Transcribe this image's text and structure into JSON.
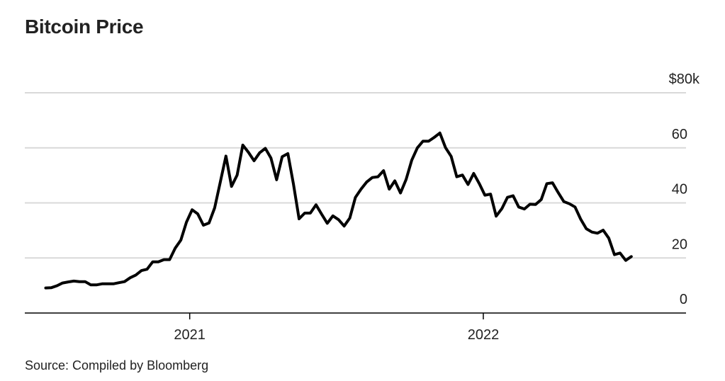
{
  "title": "Bitcoin Price",
  "source": "Source: Compiled by Bloomberg",
  "chart_data": {
    "type": "line",
    "title": "Bitcoin Price",
    "xlabel": "",
    "ylabel": "",
    "ylim": [
      0,
      80
    ],
    "y_ticks": [
      0,
      20,
      40,
      60,
      80
    ],
    "y_tick_labels": [
      "0",
      "20",
      "40",
      "60",
      "$80k"
    ],
    "x_ticks": [
      {
        "label": "2021",
        "x": "2021-01-01"
      },
      {
        "label": "2022",
        "x": "2022-01-01"
      }
    ],
    "x_range": [
      "2020-06-10",
      "2022-09-10"
    ],
    "grid": true,
    "series": [
      {
        "color": "#000000",
        "x": [
          "2020-07-06",
          "2020-07-13",
          "2020-07-20",
          "2020-07-27",
          "2020-08-03",
          "2020-08-10",
          "2020-08-17",
          "2020-08-24",
          "2020-08-31",
          "2020-09-07",
          "2020-09-14",
          "2020-09-21",
          "2020-09-28",
          "2020-10-05",
          "2020-10-12",
          "2020-10-19",
          "2020-10-26",
          "2020-11-02",
          "2020-11-09",
          "2020-11-16",
          "2020-11-23",
          "2020-11-30",
          "2020-12-07",
          "2020-12-14",
          "2020-12-21",
          "2020-12-28",
          "2021-01-04",
          "2021-01-11",
          "2021-01-18",
          "2021-01-25",
          "2021-02-01",
          "2021-02-08",
          "2021-02-15",
          "2021-02-22",
          "2021-03-01",
          "2021-03-08",
          "2021-03-15",
          "2021-03-22",
          "2021-03-29",
          "2021-04-05",
          "2021-04-12",
          "2021-04-19",
          "2021-04-26",
          "2021-05-03",
          "2021-05-10",
          "2021-05-17",
          "2021-05-24",
          "2021-05-31",
          "2021-06-07",
          "2021-06-14",
          "2021-06-21",
          "2021-06-28",
          "2021-07-05",
          "2021-07-12",
          "2021-07-19",
          "2021-07-26",
          "2021-08-02",
          "2021-08-09",
          "2021-08-16",
          "2021-08-23",
          "2021-08-30",
          "2021-09-06",
          "2021-09-13",
          "2021-09-20",
          "2021-09-27",
          "2021-10-04",
          "2021-10-11",
          "2021-10-18",
          "2021-10-25",
          "2021-11-01",
          "2021-11-08",
          "2021-11-15",
          "2021-11-22",
          "2021-11-29",
          "2021-12-06",
          "2021-12-13",
          "2021-12-20",
          "2021-12-27",
          "2022-01-03",
          "2022-01-10",
          "2022-01-17",
          "2022-01-24",
          "2022-01-31",
          "2022-02-07",
          "2022-02-14",
          "2022-02-21",
          "2022-02-28",
          "2022-03-07",
          "2022-03-14",
          "2022-03-21",
          "2022-03-28",
          "2022-04-04",
          "2022-04-11",
          "2022-04-18",
          "2022-04-25",
          "2022-05-02",
          "2022-05-09",
          "2022-05-16",
          "2022-05-23",
          "2022-05-30",
          "2022-06-06",
          "2022-06-13",
          "2022-06-20",
          "2022-06-27",
          "2022-07-04"
        ],
        "values": [
          9.1,
          9.2,
          9.9,
          10.9,
          11.3,
          11.6,
          11.4,
          11.4,
          10.2,
          10.2,
          10.6,
          10.6,
          10.6,
          11.0,
          11.4,
          12.8,
          13.8,
          15.4,
          15.9,
          18.6,
          18.6,
          19.4,
          19.4,
          23.6,
          26.5,
          33.0,
          37.5,
          36.0,
          31.9,
          32.7,
          38.2,
          47.5,
          57.0,
          46.0,
          50.1,
          61.0,
          58.4,
          55.3,
          58.2,
          59.8,
          56.3,
          48.4,
          56.8,
          57.9,
          46.8,
          34.2,
          36.3,
          36.3,
          39.3,
          35.9,
          32.6,
          35.3,
          33.9,
          31.6,
          34.5,
          42.0,
          45.0,
          47.6,
          49.2,
          49.5,
          51.7,
          45.0,
          48.0,
          43.6,
          48.5,
          55.5,
          60.0,
          62.4,
          62.4,
          63.8,
          65.4,
          60.1,
          56.9,
          49.5,
          50.1,
          46.7,
          50.7,
          47.0,
          42.8,
          43.2,
          35.2,
          37.9,
          42.0,
          42.6,
          38.5,
          37.8,
          39.5,
          39.4,
          41.2,
          47.0,
          47.3,
          43.8,
          40.5,
          39.7,
          38.5,
          34.1,
          30.6,
          29.4,
          29.0,
          30.1,
          27.2,
          21.2,
          21.8,
          19.1,
          20.5
        ]
      }
    ]
  }
}
